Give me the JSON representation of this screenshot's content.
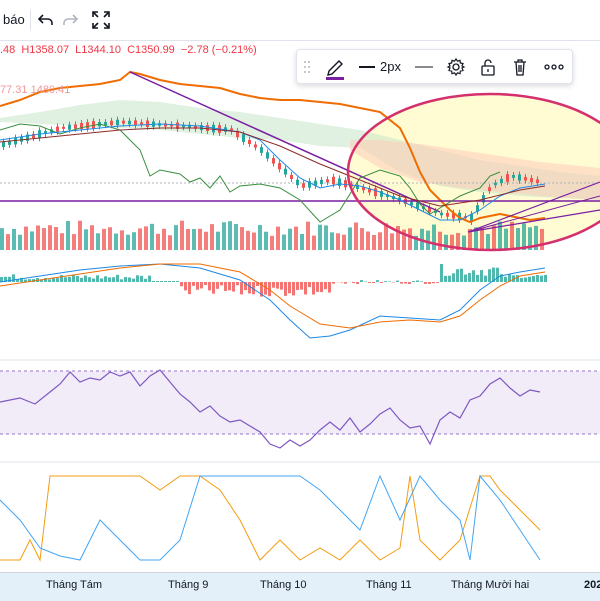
{
  "toolbar": {
    "partial_label": "báo",
    "undo_icon": "undo-icon",
    "redo_icon": "redo-icon",
    "fullscreen_icon": "fullscreen-icon"
  },
  "legend": {
    "ohlc_prefix": ".48",
    "high": "H1358.07",
    "low": "L1344.10",
    "close": "C1350.99",
    "change": "−2.78 (−0.21%)",
    "ichimoku_values": "77.31  1480.41"
  },
  "drawing_toolbar": {
    "drag_handle_icon": "drag-handle-icon",
    "pencil_icon": "pencil-icon",
    "line_width_label": "2px",
    "line_style_icon": "line-style-icon",
    "settings_icon": "gear-icon",
    "lock_icon": "unlock-icon",
    "delete_icon": "trash-icon",
    "more_icon": "more-icon",
    "accent_color": "#7b1fa2"
  },
  "time_axis": {
    "labels": [
      "Tháng Tám",
      "Tháng 9",
      "Tháng 10",
      "Tháng 11",
      "Tháng Mười hai",
      "202"
    ]
  },
  "colors": {
    "up": "#26a69a",
    "down": "#ef5350",
    "ellipse": "#d5306e",
    "trend_line": "#7b1fa2",
    "highlight_fill": "#fff9c4",
    "rsi_band": "#ede7f6",
    "time_axis_bg": "#e3f0fa"
  }
}
